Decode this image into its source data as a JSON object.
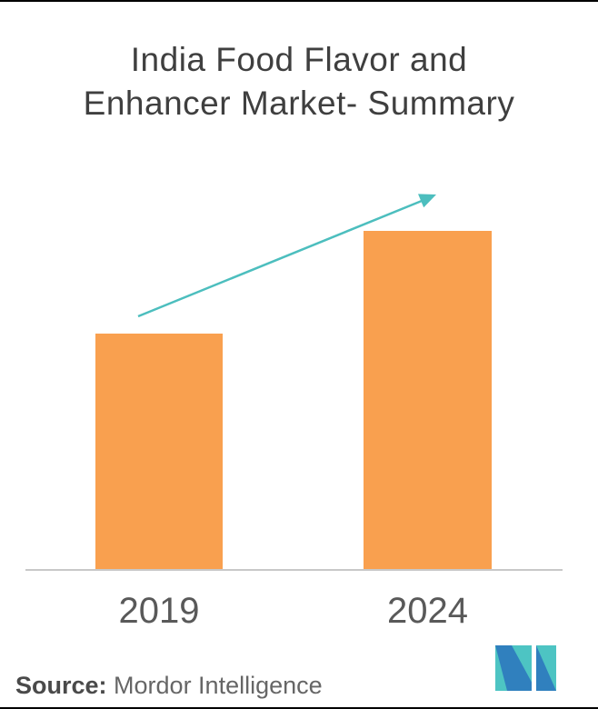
{
  "title": {
    "line1": "India Food Flavor and",
    "line2": "Enhancer Market- Summary"
  },
  "chart_data": {
    "type": "bar",
    "title": "India Food Flavor and Enhancer Market- Summary",
    "categories": [
      "2019",
      "2024"
    ],
    "values_relative_height": [
      259,
      372
    ],
    "value_axis_labeled": false,
    "value_labels_shown": false,
    "xlabel": "",
    "ylabel": "",
    "grid": false,
    "legend": false,
    "bar_color": "#f9a04f",
    "trend_arrow": {
      "direction": "up-right",
      "color": "#4cbebe"
    }
  },
  "footer": {
    "source_label": "Source:",
    "source_value": " Mordor Intelligence",
    "logo_name": "mordor-intelligence-logo"
  },
  "colors": {
    "background": "#ffffff",
    "border": "#000000",
    "bar_orange": "#f9a04f",
    "arrow_teal": "#4cbebe",
    "axis_gray": "#c8c8c8",
    "title_gray": "#3f3f3f",
    "tick_gray": "#595959",
    "source_bold_gray": "#4a4a4a",
    "source_gray": "#666666",
    "logo_teal": "#4dc4c3",
    "logo_blue": "#3080be"
  }
}
